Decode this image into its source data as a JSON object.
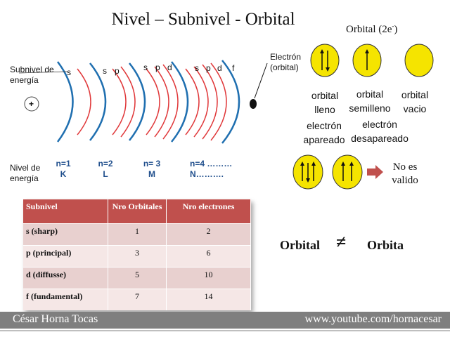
{
  "title": "Nivel – Subnivel - Orbital",
  "orbital_header": {
    "text": "Orbital (2e",
    "superscript": "-",
    "close": ")"
  },
  "left_labels": {
    "subnivel": [
      "Subnivel de",
      "energía"
    ],
    "nivel": [
      "Nivel de",
      "energía"
    ],
    "nucleus": "+"
  },
  "electron_label": [
    "Electrón",
    "(orbital)"
  ],
  "sublevel_letters": {
    "n1": [
      "s"
    ],
    "n2": [
      "s",
      "p"
    ],
    "n3": [
      "s",
      "p",
      "d"
    ],
    "n4": [
      "s",
      "p",
      "d",
      "f"
    ]
  },
  "levels": [
    {
      "n": "n=1",
      "name": "K"
    },
    {
      "n": "n=2",
      "name": "L"
    },
    {
      "n": "n= 3",
      "name": "M"
    },
    {
      "n": "n=4 ………",
      "name": "N………."
    }
  ],
  "orbitals": [
    {
      "label": [
        "orbital",
        "lleno"
      ],
      "electrons": 2,
      "electron_label": [
        "electrón",
        "apareado"
      ]
    },
    {
      "label": [
        "orbital",
        "semilleno"
      ],
      "electrons": 1,
      "electron_label": [
        "electrón",
        "desapareado"
      ]
    },
    {
      "label": [
        "orbital",
        "vacio"
      ],
      "electrons": 0
    }
  ],
  "invalid_label": [
    "No es",
    "valido"
  ],
  "comparison": {
    "left": "Orbital",
    "symbol": "≠",
    "right": "Orbita"
  },
  "table": {
    "headers": [
      "Subnivel",
      "Nro Orbitales",
      "Nro electrones"
    ],
    "rows": [
      [
        "s (sharp)",
        "1",
        "2"
      ],
      [
        "p (principal)",
        "3",
        "6"
      ],
      [
        "d (diffusse)",
        "5",
        "10"
      ],
      [
        "f (fundamental)",
        "7",
        "14"
      ]
    ]
  },
  "footer": {
    "left": "César Horna Tocas",
    "right": "www.youtube.com/hornacesar"
  },
  "colors": {
    "shell": "#1f6fb0",
    "subshell": "#e0383a",
    "orbital_fill": "#f5e400",
    "table_header": "#c0504d",
    "footer": "#7f7f7f"
  }
}
